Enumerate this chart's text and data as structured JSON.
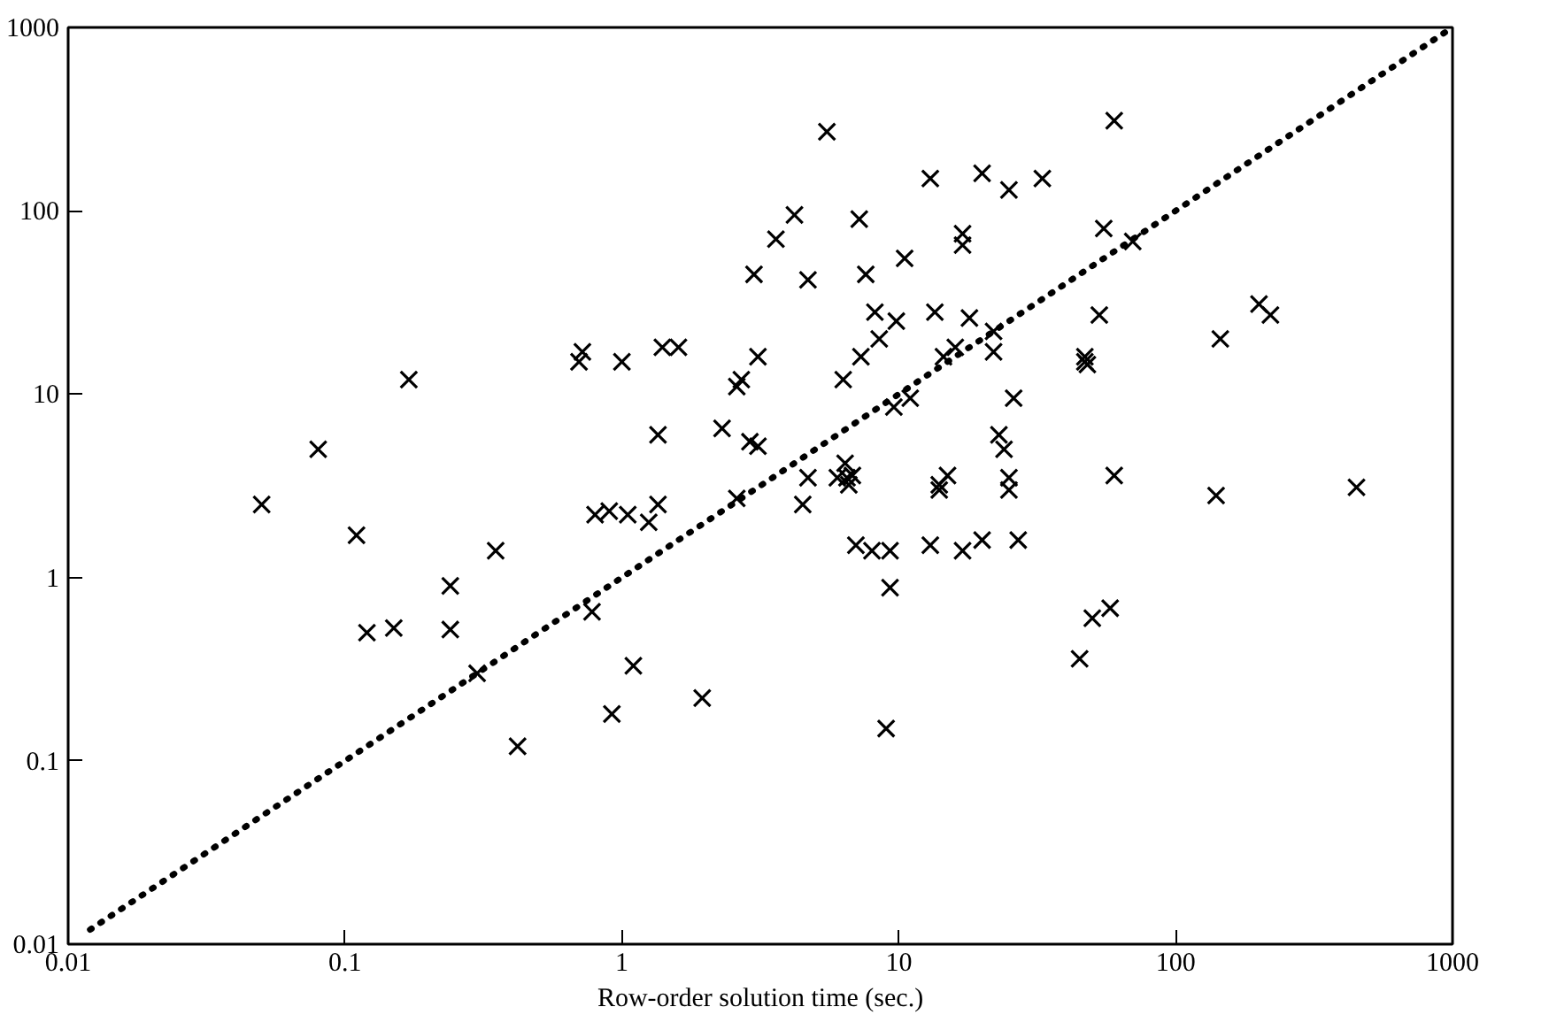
{
  "chart_data": {
    "type": "scatter",
    "xlabel": "Row-order solution time (sec.)",
    "log": "xy",
    "grid": false,
    "xlim": [
      0.01,
      1000
    ],
    "ylim": [
      0.01,
      1000
    ],
    "xticks": [
      0.01,
      0.1,
      1,
      10,
      100,
      1000
    ],
    "yticks": [
      0.01,
      0.1,
      1,
      10,
      100,
      1000
    ],
    "series": [
      {
        "color": "#000000",
        "marker": "cross",
        "x": [
          0.05,
          0.08,
          0.11,
          0.12,
          0.15,
          0.17,
          0.24,
          0.24,
          0.3,
          0.35,
          0.42,
          0.7,
          0.72,
          0.78,
          0.8,
          0.9,
          0.92,
          1.0,
          1.05,
          1.1,
          1.25,
          1.35,
          1.35,
          1.4,
          1.6,
          1.95,
          2.3,
          2.6,
          2.6,
          2.7,
          2.9,
          3.0,
          3.1,
          3.1,
          3.6,
          4.2,
          4.5,
          4.7,
          4.7,
          5.5,
          6.0,
          6.3,
          6.4,
          6.5,
          6.6,
          6.8,
          7.0,
          7.2,
          7.3,
          7.6,
          8.0,
          8.2,
          8.5,
          9.0,
          9.3,
          9.3,
          9.6,
          9.8,
          10.5,
          11,
          13,
          13,
          13.5,
          14,
          14,
          14.5,
          15,
          16,
          17,
          17,
          17,
          18,
          20,
          20,
          22,
          22,
          23,
          24,
          25,
          25,
          25,
          26,
          27,
          33,
          45,
          47,
          47,
          48,
          50,
          53,
          55,
          58,
          60,
          60,
          70,
          140,
          145,
          200,
          220,
          450
        ],
        "values": [
          2.5,
          5,
          1.7,
          0.5,
          0.53,
          12,
          0.9,
          0.52,
          0.3,
          1.4,
          0.12,
          15,
          17,
          0.65,
          2.2,
          2.3,
          0.18,
          15,
          2.2,
          0.33,
          2,
          6,
          2.5,
          18,
          18,
          0.22,
          6.5,
          2.7,
          11,
          12,
          5.5,
          45,
          5.2,
          16,
          70,
          95,
          2.5,
          42,
          3.5,
          270,
          3.5,
          12,
          4.2,
          3.5,
          3.2,
          3.6,
          1.5,
          90,
          16,
          45,
          1.4,
          28,
          20,
          0.15,
          1.4,
          0.88,
          8.5,
          25,
          55,
          9.5,
          150,
          1.5,
          28,
          3.2,
          3.0,
          16,
          3.6,
          18,
          65,
          75,
          1.4,
          26,
          160,
          1.6,
          17,
          22,
          6,
          5,
          3.5,
          3.0,
          130,
          9.5,
          1.6,
          150,
          0.36,
          16,
          15,
          14.5,
          0.6,
          27,
          80,
          0.68,
          310,
          3.6,
          68,
          2.8,
          20,
          31,
          27,
          3.1
        ]
      },
      {
        "type": "line",
        "color": "#000000",
        "line_style": "dotted",
        "marker": "none",
        "x": [
          0.012,
          1000
        ],
        "values": [
          0.012,
          1000
        ]
      }
    ]
  }
}
